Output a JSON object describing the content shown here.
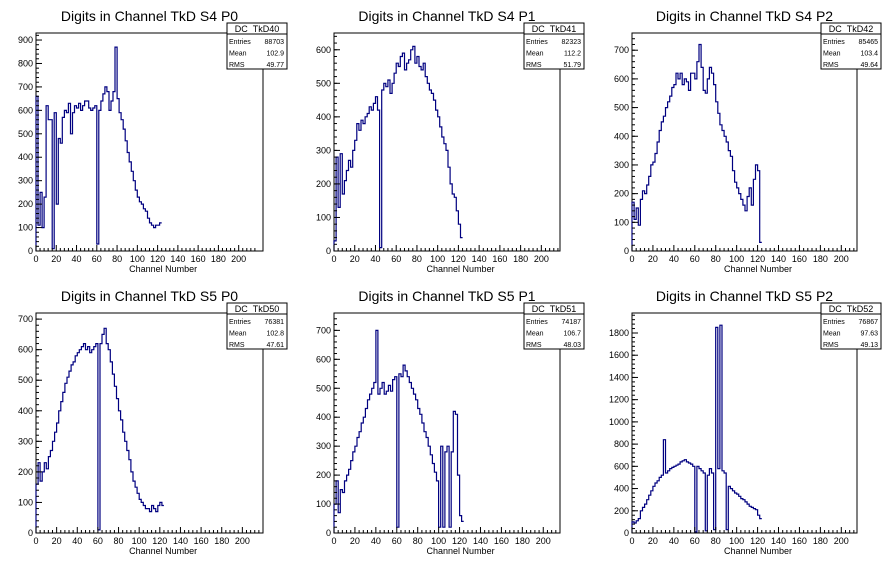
{
  "colors": {
    "line": "#000080",
    "axis": "#000000",
    "background": "#ffffff"
  },
  "chart_data": [
    {
      "type": "histogram",
      "title": "Digits in Channel TkD S4 P0",
      "xlabel": "Channel Number",
      "ylabel": "",
      "xlim": [
        0,
        224
      ],
      "ylim": [
        0,
        930
      ],
      "xticks": [
        0,
        20,
        40,
        60,
        80,
        100,
        120,
        140,
        160,
        180,
        200
      ],
      "yticks": [
        0,
        100,
        200,
        300,
        400,
        500,
        600,
        700,
        800,
        900
      ],
      "grid": false,
      "stats": {
        "name": "DC_TkD40",
        "entries_label": "Entries",
        "entries": "88703",
        "mean_label": "Mean",
        "mean": "102.9",
        "rms_label": "RMS",
        "rms": "49.77"
      },
      "bin_width": 2,
      "values": [
        660,
        110,
        250,
        100,
        230,
        620,
        560,
        560,
        10,
        590,
        200,
        480,
        460,
        570,
        600,
        590,
        630,
        500,
        590,
        620,
        610,
        630,
        600,
        620,
        640,
        640,
        610,
        600,
        610,
        620,
        30,
        600,
        640,
        670,
        700,
        680,
        600,
        640,
        680,
        870,
        650,
        590,
        560,
        520,
        470,
        420,
        380,
        340,
        300,
        260,
        230,
        210,
        200,
        180,
        170,
        140,
        120,
        110,
        100,
        110,
        110,
        120
      ]
    },
    {
      "type": "histogram",
      "title": "Digits in Channel TkD S4 P1",
      "xlabel": "Channel Number",
      "ylabel": "",
      "xlim": [
        0,
        218
      ],
      "ylim": [
        0,
        650
      ],
      "xticks": [
        0,
        20,
        40,
        60,
        80,
        100,
        120,
        140,
        160,
        180,
        200
      ],
      "yticks": [
        0,
        100,
        200,
        300,
        400,
        500,
        600
      ],
      "grid": false,
      "stats": {
        "name": "DC_TkD41",
        "entries_label": "Entries",
        "entries": "82323",
        "mean_label": "Mean",
        "mean": "112.2",
        "rms_label": "RMS",
        "rms": "51.79"
      },
      "bin_width": 2,
      "values": [
        30,
        280,
        130,
        290,
        170,
        210,
        240,
        270,
        250,
        300,
        330,
        380,
        360,
        390,
        380,
        400,
        410,
        430,
        420,
        440,
        460,
        420,
        10,
        480,
        500,
        490,
        510,
        470,
        500,
        530,
        560,
        550,
        580,
        590,
        540,
        560,
        570,
        600,
        610,
        560,
        580,
        550,
        540,
        560,
        520,
        500,
        480,
        470,
        450,
        420,
        400,
        370,
        340,
        320,
        300,
        250,
        200,
        170,
        160,
        120,
        80,
        40
      ]
    },
    {
      "type": "histogram",
      "title": "Digits in Channel TkD S4 P2",
      "xlabel": "Channel Number",
      "ylabel": "",
      "xlim": [
        0,
        215
      ],
      "ylim": [
        0,
        760
      ],
      "xticks": [
        0,
        20,
        40,
        60,
        80,
        100,
        120,
        140,
        160,
        180,
        200
      ],
      "yticks": [
        0,
        100,
        200,
        300,
        400,
        500,
        600,
        700
      ],
      "grid": false,
      "stats": {
        "name": "DC_TkD42",
        "entries_label": "Entries",
        "entries": "85465",
        "mean_label": "Mean",
        "mean": "103.4",
        "rms_label": "RMS",
        "rms": "49.64"
      },
      "bin_width": 2,
      "values": [
        170,
        110,
        150,
        90,
        180,
        210,
        200,
        230,
        260,
        300,
        310,
        340,
        380,
        420,
        450,
        470,
        500,
        520,
        540,
        570,
        580,
        620,
        600,
        620,
        580,
        600,
        590,
        560,
        620,
        620,
        600,
        660,
        720,
        640,
        560,
        550,
        600,
        640,
        620,
        580,
        520,
        480,
        440,
        420,
        400,
        380,
        350,
        330,
        280,
        240,
        220,
        200,
        180,
        160,
        140,
        190,
        220,
        160,
        250,
        300,
        280,
        30
      ]
    },
    {
      "type": "histogram",
      "title": "Digits in Channel TkD S5 P0",
      "xlabel": "Channel Number",
      "ylabel": "",
      "xlim": [
        0,
        220
      ],
      "ylim": [
        0,
        720
      ],
      "xticks": [
        0,
        20,
        40,
        60,
        80,
        100,
        120,
        140,
        160,
        180,
        200
      ],
      "yticks": [
        0,
        100,
        200,
        300,
        400,
        500,
        600,
        700
      ],
      "grid": false,
      "stats": {
        "name": "DC_TkD50",
        "entries_label": "Entries",
        "entries": "76381",
        "mean_label": "Mean",
        "mean": "102.8",
        "rms_label": "RMS",
        "rms": "47.61"
      },
      "bin_width": 2,
      "values": [
        160,
        230,
        170,
        200,
        230,
        210,
        250,
        270,
        300,
        330,
        360,
        400,
        430,
        460,
        490,
        510,
        530,
        550,
        560,
        580,
        590,
        600,
        610,
        620,
        600,
        610,
        590,
        600,
        610,
        620,
        10,
        620,
        650,
        670,
        620,
        600,
        560,
        520,
        480,
        440,
        400,
        370,
        330,
        300,
        270,
        240,
        200,
        170,
        150,
        130,
        110,
        100,
        90,
        80,
        80,
        70,
        90,
        80,
        70,
        90,
        100,
        90
      ]
    },
    {
      "type": "histogram",
      "title": "Digits in Channel TkD S5 P1",
      "xlabel": "Channel Number",
      "ylabel": "",
      "xlim": [
        0,
        216
      ],
      "ylim": [
        0,
        760
      ],
      "xticks": [
        0,
        20,
        40,
        60,
        80,
        100,
        120,
        140,
        160,
        180,
        200
      ],
      "yticks": [
        0,
        100,
        200,
        300,
        400,
        500,
        600,
        700
      ],
      "grid": false,
      "stats": {
        "name": "DC_TkD51",
        "entries_label": "Entries",
        "entries": "74187",
        "mean_label": "Mean",
        "mean": "106.7",
        "rms_label": "RMS",
        "rms": "48.03"
      },
      "bin_width": 2,
      "values": [
        100,
        180,
        70,
        150,
        140,
        180,
        200,
        220,
        250,
        280,
        300,
        330,
        350,
        380,
        400,
        430,
        460,
        480,
        500,
        520,
        700,
        480,
        500,
        520,
        480,
        490,
        510,
        490,
        530,
        540,
        20,
        550,
        540,
        580,
        560,
        540,
        520,
        500,
        480,
        460,
        430,
        410,
        380,
        350,
        330,
        300,
        270,
        240,
        210,
        180,
        20,
        300,
        20,
        280,
        300,
        20,
        280,
        420,
        410,
        200,
        60,
        40
      ]
    },
    {
      "type": "histogram",
      "title": "Digits in Channel TkD S5 P2",
      "xlabel": "Channel Number",
      "ylabel": "",
      "xlim": [
        0,
        215
      ],
      "ylim": [
        0,
        1980
      ],
      "xticks": [
        0,
        20,
        40,
        60,
        80,
        100,
        120,
        140,
        160,
        180,
        200
      ],
      "yticks": [
        0,
        200,
        400,
        600,
        800,
        1000,
        1200,
        1400,
        1600,
        1800
      ],
      "grid": false,
      "stats": {
        "name": "DC_TkD52",
        "entries_label": "Entries",
        "entries": "76867",
        "mean_label": "Mean",
        "mean": "97.63",
        "rms_label": "RMS",
        "rms": "49.13"
      },
      "bin_width": 2,
      "values": [
        100,
        90,
        110,
        130,
        200,
        230,
        260,
        300,
        340,
        380,
        420,
        450,
        470,
        500,
        520,
        840,
        540,
        560,
        580,
        590,
        600,
        610,
        620,
        640,
        650,
        660,
        640,
        630,
        620,
        600,
        10,
        600,
        580,
        560,
        540,
        20,
        520,
        580,
        540,
        30,
        1850,
        580,
        1870,
        560,
        540,
        30,
        420,
        400,
        380,
        360,
        350,
        330,
        310,
        300,
        280,
        260,
        240,
        230,
        220,
        210,
        160,
        130
      ]
    }
  ]
}
